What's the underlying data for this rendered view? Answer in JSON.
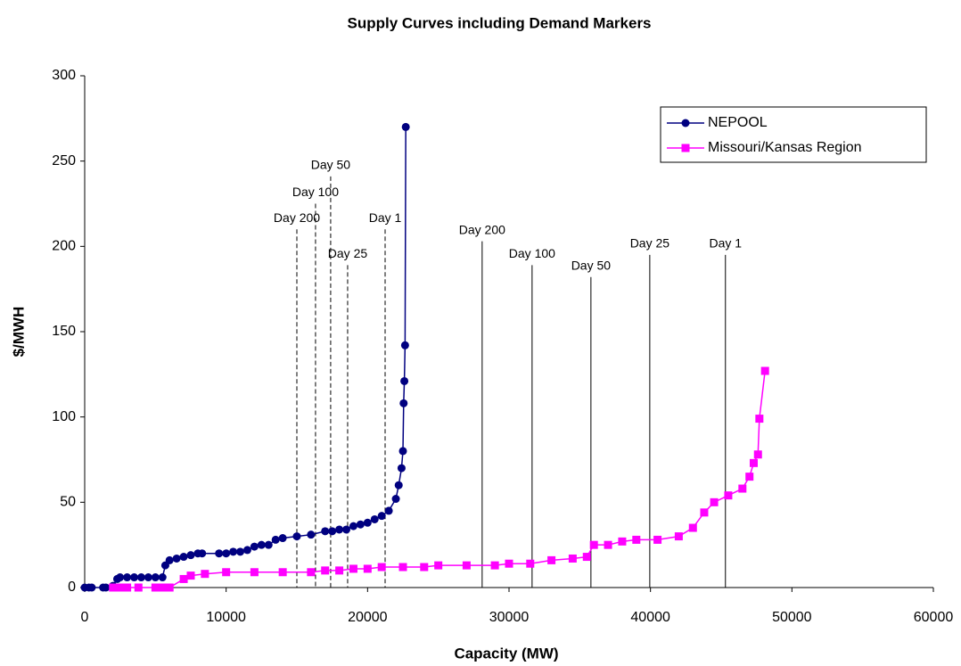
{
  "chart_data": {
    "type": "line",
    "title": "Supply Curves including Demand Markers",
    "x_label": "Capacity (MW)",
    "y_label": "$/MWH",
    "xlim": [
      0,
      60000
    ],
    "xticks": [
      0,
      10000,
      20000,
      30000,
      40000,
      50000,
      60000
    ],
    "ylim": [
      0,
      300
    ],
    "yticks": [
      0,
      50,
      100,
      150,
      200,
      250,
      300
    ],
    "series": [
      {
        "name": "NEPOOL",
        "color": "#000080",
        "marker": "circle",
        "x": [
          0,
          300,
          500,
          1300,
          1500,
          2000,
          2300,
          2500,
          3000,
          3500,
          4000,
          4500,
          5000,
          5500,
          5700,
          6000,
          6500,
          7000,
          7500,
          8000,
          8300,
          9500,
          10000,
          10500,
          11000,
          11500,
          12000,
          12500,
          13000,
          13500,
          14000,
          15000,
          16000,
          17000,
          17500,
          18000,
          18500,
          19000,
          19500,
          20000,
          20500,
          21000,
          21500,
          22000,
          22200,
          22400,
          22500,
          22550,
          22600,
          22650,
          22700
        ],
        "values": [
          0,
          0,
          0,
          0,
          0,
          1,
          5,
          6,
          6,
          6,
          6,
          6,
          6,
          6,
          13,
          16,
          17,
          18,
          19,
          20,
          20,
          20,
          20,
          21,
          21,
          22,
          24,
          25,
          25,
          28,
          29,
          30,
          31,
          33,
          33,
          34,
          34,
          36,
          37,
          38,
          40,
          42,
          45,
          52,
          60,
          70,
          80,
          108,
          121,
          142,
          270
        ]
      },
      {
        "name": "Missouri/Kansas Region",
        "color": "#ff00ff",
        "marker": "square",
        "x": [
          2000,
          2500,
          3000,
          3800,
          5000,
          5500,
          6000,
          7000,
          7500,
          8500,
          10000,
          12000,
          14000,
          16000,
          17000,
          18000,
          19000,
          20000,
          21000,
          22500,
          24000,
          25000,
          27000,
          29000,
          30000,
          31500,
          33000,
          34500,
          35500,
          36000,
          37000,
          38000,
          39000,
          40500,
          42000,
          43000,
          43800,
          44500,
          45500,
          46500,
          47000,
          47300,
          47600,
          47700,
          48100
        ],
        "values": [
          0,
          0,
          0,
          0,
          0,
          0,
          0,
          5,
          7,
          8,
          9,
          9,
          9,
          9,
          10,
          10,
          11,
          11,
          12,
          12,
          12,
          13,
          13,
          13,
          14,
          14,
          16,
          17,
          18,
          25,
          25,
          27,
          28,
          28,
          30,
          35,
          44,
          50,
          54,
          58,
          65,
          73,
          78,
          99,
          127
        ]
      }
    ],
    "markers": [
      {
        "label": "Day 200",
        "x": 15000,
        "top": 210,
        "dashed": true
      },
      {
        "label": "Day 100",
        "x": 16320,
        "top": 225,
        "dashed": true
      },
      {
        "label": "Day 50",
        "x": 17390,
        "top": 241,
        "dashed": true
      },
      {
        "label": "Day 25",
        "x": 18590,
        "top": 189,
        "dashed": true
      },
      {
        "label": "Day 1",
        "x": 21240,
        "top": 210,
        "dashed": true
      },
      {
        "label": "Day 200",
        "x": 28100,
        "top": 203,
        "dashed": false
      },
      {
        "label": "Day 100",
        "x": 31630,
        "top": 189,
        "dashed": false
      },
      {
        "label": "Day 50",
        "x": 35790,
        "top": 182,
        "dashed": false
      },
      {
        "label": "Day 25",
        "x": 39950,
        "top": 195,
        "dashed": false
      },
      {
        "label": "Day 1",
        "x": 45300,
        "top": 195,
        "dashed": false
      }
    ]
  }
}
